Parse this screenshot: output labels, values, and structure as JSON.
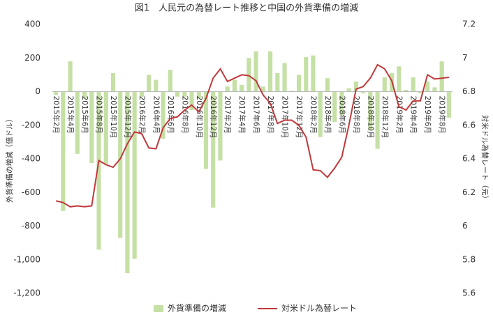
{
  "chart_data": {
    "type": "bar",
    "title": "図1　人民元の為替レート推移と中国の外貨準備の増減",
    "y_label": "外貨準備の増減（億ドル）",
    "y2_label": "対米ドル為替レート（元）",
    "categories": [
      "2015年2月",
      null,
      "2015年4月",
      null,
      "2015年6月",
      null,
      "2015年8月",
      null,
      "2015年10月",
      null,
      "2015年12月",
      null,
      "2016年2月",
      null,
      "2016年4月",
      null,
      "2016年6月",
      null,
      "2016年8月",
      null,
      "2016年10月",
      null,
      "2016年12月",
      null,
      "2017年2月",
      null,
      "2017年4月",
      null,
      "2017年6月",
      null,
      "2017年8月",
      null,
      "2017年10月",
      null,
      "2017年12月",
      null,
      "2018年2月",
      null,
      "2018年4月",
      null,
      "2018年6月",
      null,
      "2018年8月",
      null,
      "2018年10月",
      null,
      "2018年12月",
      null,
      "2019年2月",
      null,
      "2019年4月",
      null,
      "2019年6月",
      null,
      "2019年8月",
      null
    ],
    "series": [
      {
        "name": "外貨準備の増減",
        "type": "bar",
        "color": "#c5e0a5",
        "values": [
          -20,
          -710,
          180,
          -370,
          -40,
          -425,
          -940,
          -430,
          110,
          -870,
          -1080,
          -995,
          -30,
          100,
          70,
          -280,
          130,
          -30,
          -30,
          -110,
          -40,
          -460,
          -690,
          -410,
          30,
          70,
          40,
          200,
          240,
          30,
          240,
          110,
          170,
          5,
          100,
          205,
          215,
          -270,
          80,
          -180,
          -140,
          20,
          60,
          -10,
          -230,
          -340,
          85,
          110,
          150,
          10,
          85,
          -10,
          60,
          25,
          180,
          -155
        ]
      },
      {
        "name": "対米ドル為替レート",
        "type": "line",
        "axis": "y2",
        "color": "#c0393b",
        "values": [
          6.15,
          6.14,
          6.115,
          6.12,
          6.115,
          6.12,
          6.39,
          6.365,
          6.35,
          6.4,
          6.49,
          6.56,
          6.55,
          6.465,
          6.46,
          6.585,
          6.64,
          6.65,
          6.69,
          6.72,
          6.68,
          6.76,
          6.88,
          6.935,
          6.86,
          6.88,
          6.9,
          6.895,
          6.865,
          6.78,
          6.73,
          6.61,
          6.63,
          6.63,
          6.6,
          6.53,
          6.335,
          6.33,
          6.29,
          6.345,
          6.41,
          6.6,
          6.815,
          6.83,
          6.88,
          6.96,
          6.935,
          6.865,
          6.71,
          6.69,
          6.745,
          6.745,
          6.9,
          6.875,
          6.88,
          6.885
        ]
      }
    ],
    "ylim": [
      -1200,
      400
    ],
    "yticks": [
      {
        "value": -1200,
        "label": "-1,200"
      },
      {
        "value": -1000,
        "label": "-1,000"
      },
      -800,
      -600,
      -400,
      -200,
      0,
      200,
      400
    ],
    "y2lim": [
      5.6,
      7.2
    ],
    "y2ticks": [
      5.6,
      5.8,
      6,
      6.2,
      6.4,
      6.6,
      6.8,
      7,
      7.2
    ],
    "legend": "bottom"
  }
}
